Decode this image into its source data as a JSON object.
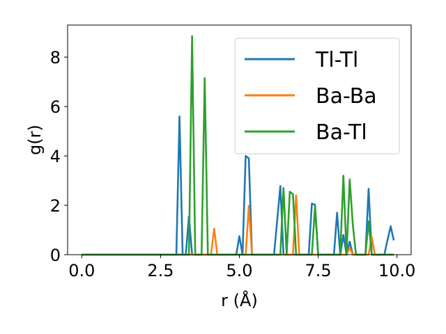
{
  "chart_data": {
    "type": "line",
    "xlabel": "r (Å)",
    "ylabel": "g(r)",
    "xlim": [
      -0.45,
      10.45
    ],
    "ylim": [
      0,
      9.3
    ],
    "xticks": [
      0.0,
      2.5,
      5.0,
      7.5,
      10.0
    ],
    "xtick_labels": [
      "0.0",
      "2.5",
      "5.0",
      "7.5",
      "10.0"
    ],
    "yticks": [
      0,
      2,
      4,
      6,
      8
    ],
    "ytick_labels": [
      "0",
      "2",
      "4",
      "6",
      "8"
    ],
    "grid": false,
    "legend_position": "top-right",
    "series": [
      {
        "name": "Tl-Tl",
        "color": "#1f77b4",
        "x": [
          0,
          3.0,
          3.1,
          3.2,
          3.3,
          3.4,
          3.5,
          4.9,
          5.0,
          5.1,
          5.2,
          5.3,
          5.4,
          6.1,
          6.2,
          6.3,
          6.4,
          6.5,
          7.2,
          7.3,
          7.4,
          7.5,
          8.0,
          8.1,
          8.2,
          8.3,
          8.4,
          8.5,
          8.6,
          8.9,
          9.0,
          9.1,
          9.2,
          9.6,
          9.7,
          9.8,
          9.9
        ],
        "y": [
          0,
          0,
          5.6,
          0,
          0,
          1.55,
          0,
          0,
          0.75,
          0,
          4.0,
          3.9,
          0,
          0,
          1.4,
          2.78,
          0,
          0,
          0,
          2.07,
          2.02,
          0,
          0,
          1.7,
          0,
          0.8,
          0,
          0.53,
          0,
          0,
          0,
          2.67,
          0,
          0,
          0.6,
          1.15,
          0.58
        ]
      },
      {
        "name": "Ba-Ba",
        "color": "#ff7f0e",
        "x": [
          0,
          4.1,
          4.2,
          4.3,
          5.2,
          5.3,
          5.4,
          6.7,
          6.8,
          6.9,
          8.4,
          8.5,
          8.6,
          9.1,
          9.2,
          9.3,
          9.9
        ],
        "y": [
          0,
          0,
          1.05,
          0,
          0,
          1.98,
          0,
          0,
          2.4,
          0,
          0,
          0.28,
          0,
          0,
          0.72,
          0,
          0
        ]
      },
      {
        "name": "Ba-Tl",
        "color": "#2ca02c",
        "x": [
          0,
          3.4,
          3.5,
          3.6,
          3.8,
          3.9,
          4.0,
          6.3,
          6.4,
          6.5,
          6.6,
          6.7,
          6.8,
          7.3,
          7.4,
          7.5,
          8.2,
          8.3,
          8.4,
          8.5,
          8.6,
          8.7,
          9.0,
          9.1,
          9.2,
          9.9
        ],
        "y": [
          0,
          0,
          8.85,
          0,
          0,
          7.15,
          0,
          0,
          2.7,
          0,
          2.55,
          2.45,
          0,
          0,
          1.95,
          0,
          0,
          3.2,
          0,
          3.05,
          1.2,
          0,
          0,
          1.35,
          0,
          0
        ]
      }
    ]
  }
}
